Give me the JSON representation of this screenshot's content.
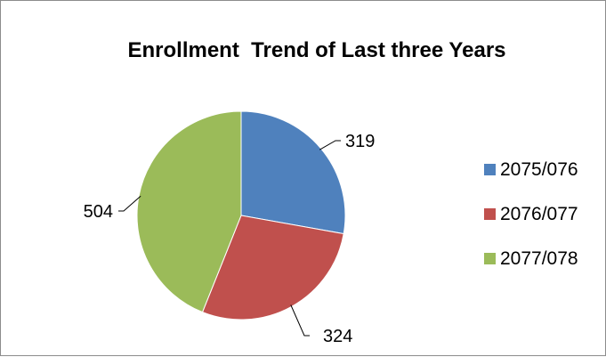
{
  "chart_data": {
    "type": "pie",
    "title": "Enrollment  Trend of Last three Years",
    "categories": [
      "2075/076",
      "2076/077",
      "2077/078"
    ],
    "values": [
      319,
      324,
      504
    ],
    "colors": [
      "#4f81bd",
      "#c0504d",
      "#9bbb59"
    ],
    "data_labels": [
      "319",
      "324",
      "504"
    ],
    "legend_position": "right",
    "start_angle_deg": 0,
    "direction": "clockwise"
  }
}
